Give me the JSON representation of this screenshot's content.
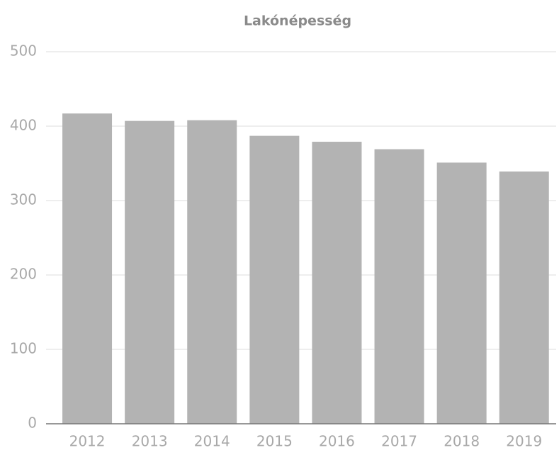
{
  "chart_data": {
    "type": "bar",
    "title": "Lakónépesség",
    "categories": [
      "2012",
      "2013",
      "2014",
      "2015",
      "2016",
      "2017",
      "2018",
      "2019"
    ],
    "values": [
      417,
      407,
      408,
      387,
      379,
      369,
      351,
      339
    ],
    "color": "#b3b3b3",
    "ylim": [
      0,
      500
    ],
    "yticks": [
      0,
      100,
      200,
      300,
      400,
      500
    ],
    "grid": true
  }
}
